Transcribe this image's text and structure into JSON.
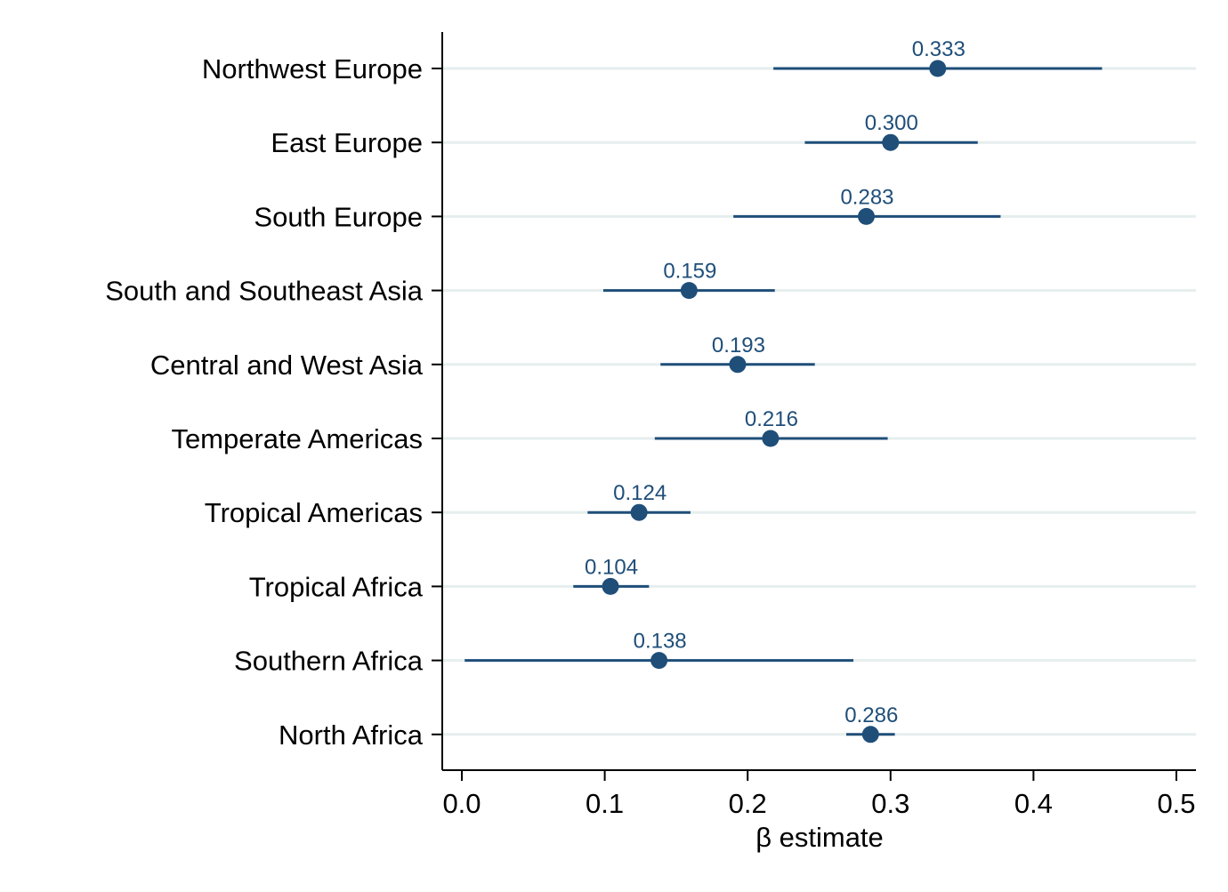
{
  "chart_data": {
    "type": "scatter",
    "orientation": "horizontal",
    "title": "",
    "xlabel": "β estimate",
    "ylabel": "",
    "xlim": [
      0.0,
      0.5
    ],
    "xticks": [
      0.0,
      0.1,
      0.2,
      0.3,
      0.4,
      0.5
    ],
    "xtick_labels": [
      "0.0",
      "0.1",
      "0.2",
      "0.3",
      "0.4",
      "0.5"
    ],
    "grid": "horizontal",
    "legend": "none",
    "marker_color": "#1f4e79",
    "grid_color": "#e6eeee",
    "categories": [
      "Northwest Europe",
      "East Europe",
      "South Europe",
      "South and Southeast Asia",
      "Central and West Asia",
      "Temperate Americas",
      "Tropical Americas",
      "Tropical Africa",
      "Southern Africa",
      "North Africa"
    ],
    "estimates": [
      0.333,
      0.3,
      0.283,
      0.159,
      0.193,
      0.216,
      0.124,
      0.104,
      0.138,
      0.286
    ],
    "ci_lower": [
      0.218,
      0.24,
      0.19,
      0.099,
      0.139,
      0.135,
      0.088,
      0.078,
      0.002,
      0.269
    ],
    "ci_upper": [
      0.448,
      0.361,
      0.377,
      0.219,
      0.247,
      0.298,
      0.16,
      0.131,
      0.274,
      0.303
    ],
    "value_labels": [
      "0.333",
      "0.300",
      "0.283",
      "0.159",
      "0.193",
      "0.216",
      "0.124",
      "0.104",
      "0.138",
      "0.286"
    ]
  }
}
